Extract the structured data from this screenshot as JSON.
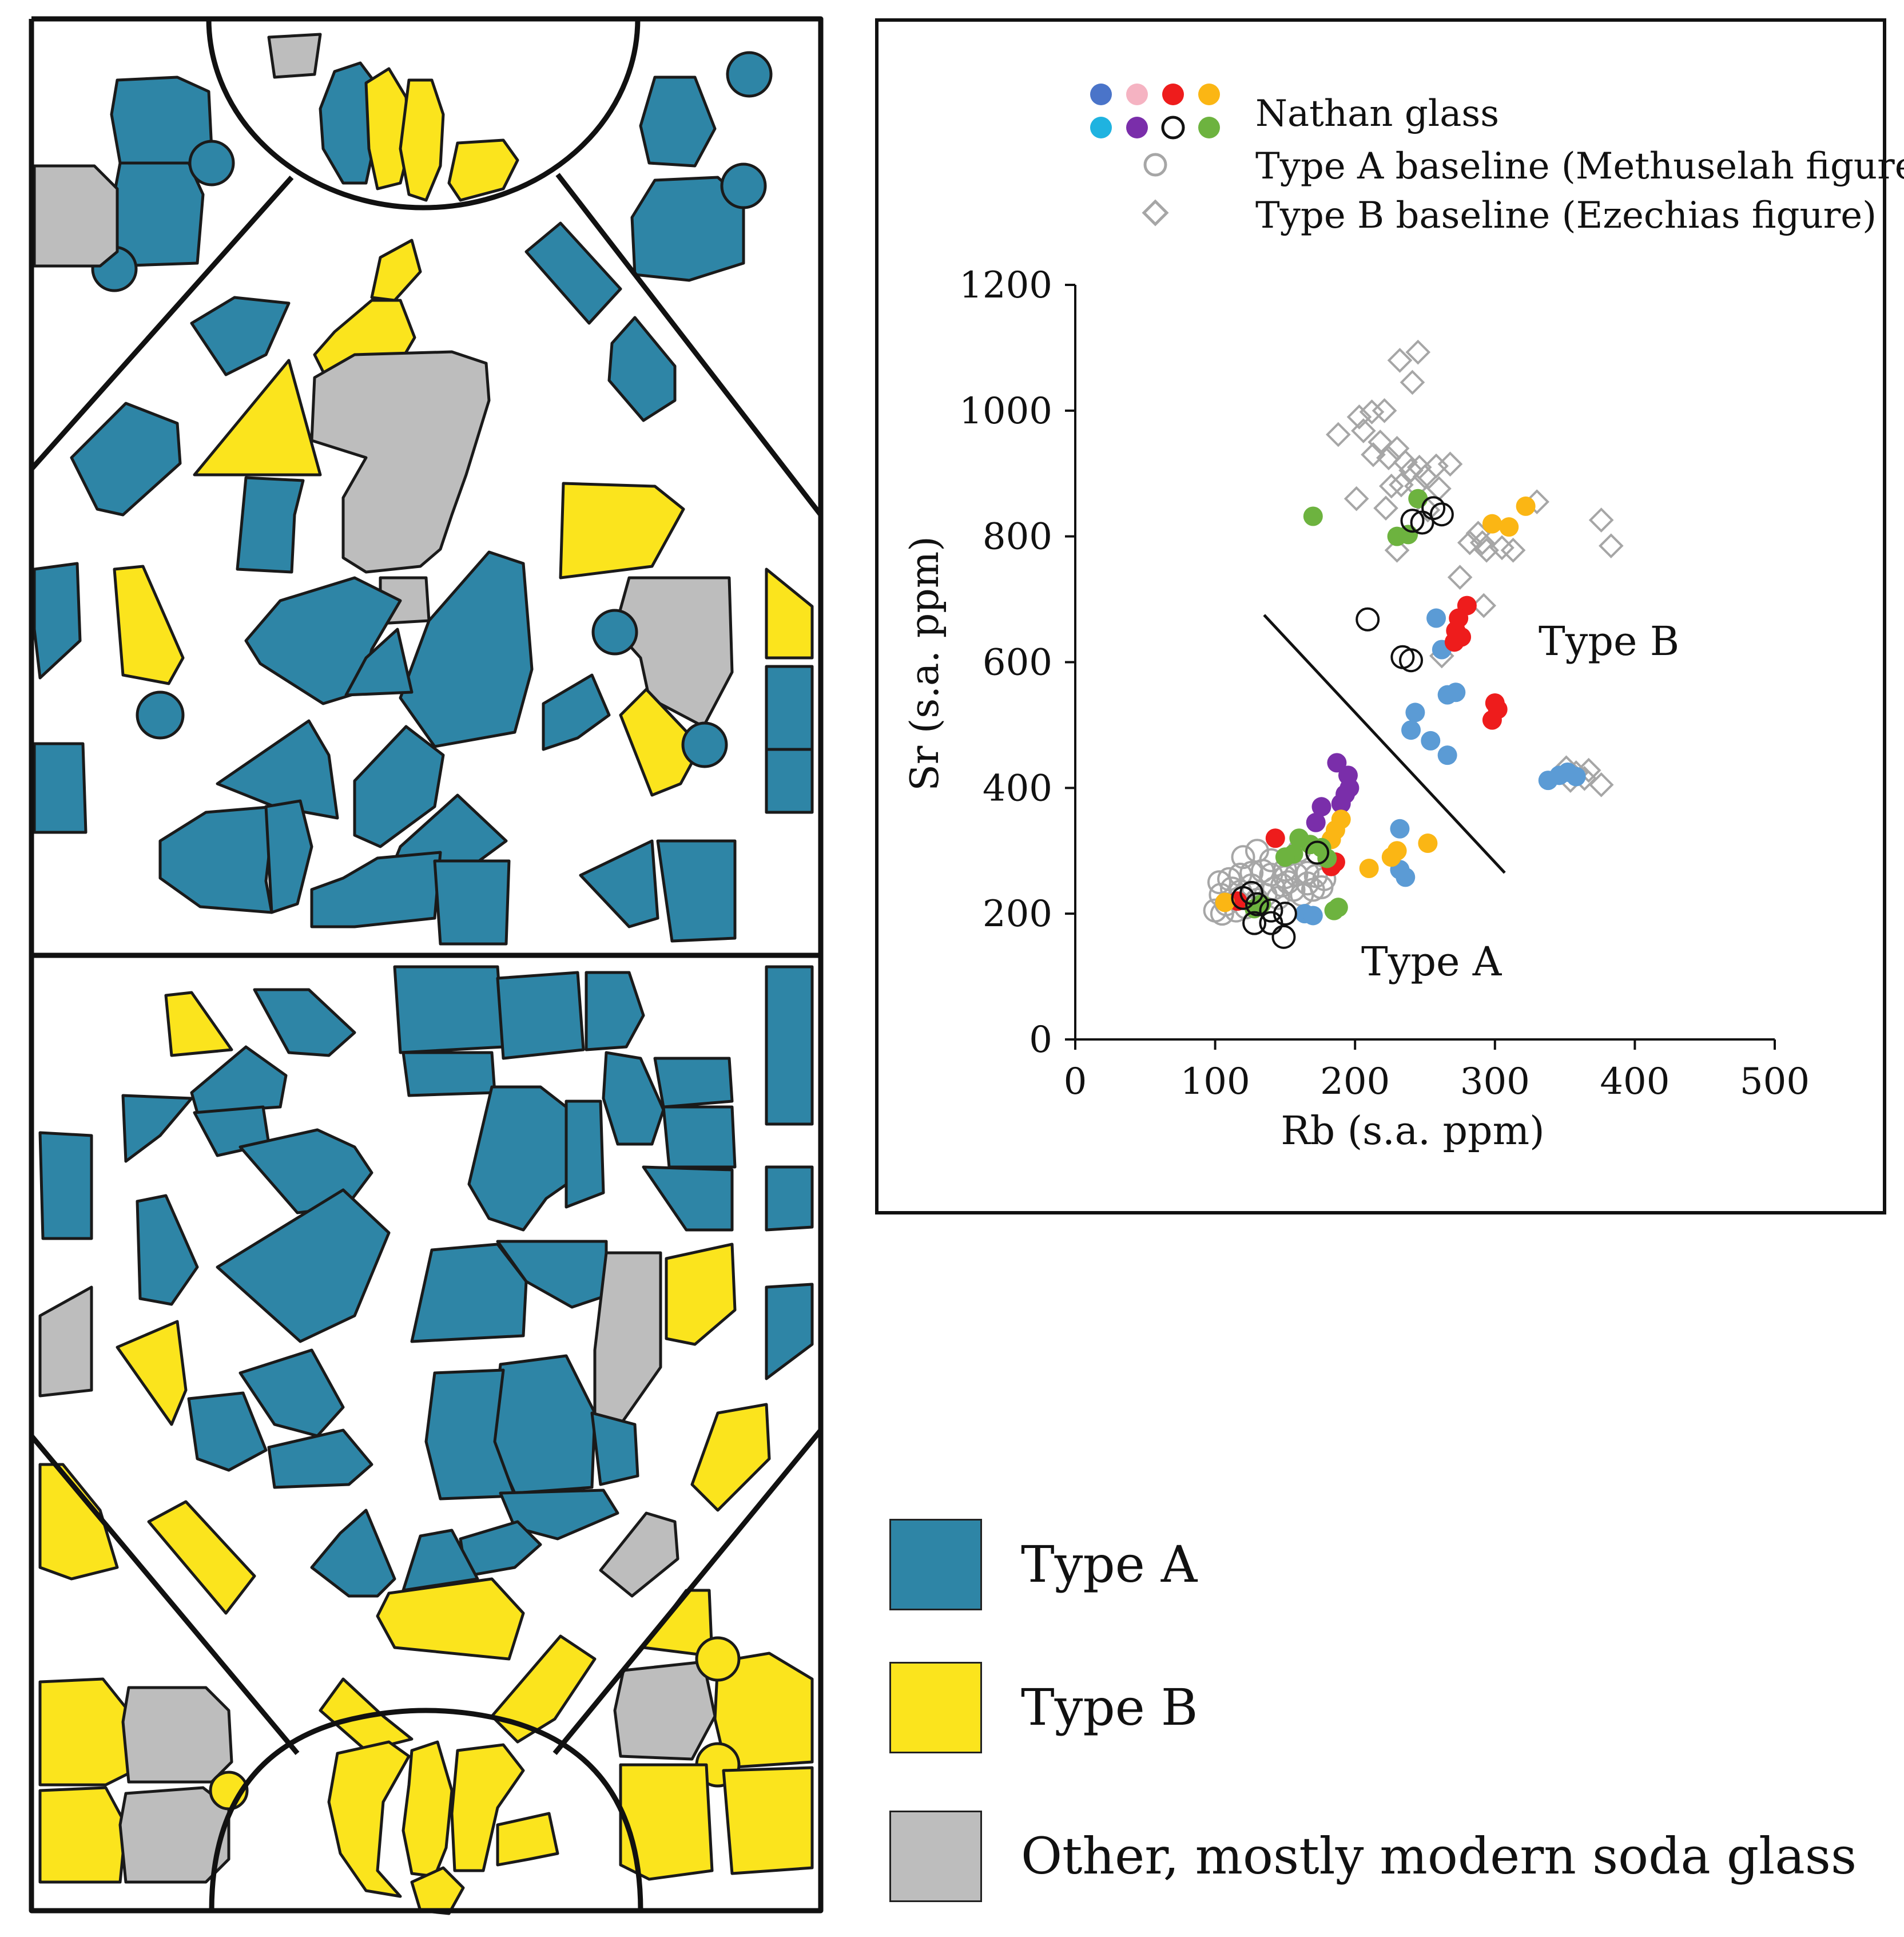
{
  "colors": {
    "type_a": "#2e85a6",
    "type_b": "#fbe41d",
    "other": "#bdbdbd",
    "outline": "#1a1a1a"
  },
  "legend": [
    {
      "label": "Type A",
      "color": "#2e85a6"
    },
    {
      "label": "Type B",
      "color": "#fbe41d"
    },
    {
      "label": "Other, mostly modern soda glass",
      "color": "#bdbdbd"
    }
  ],
  "chart_data": {
    "type": "scatter",
    "xlabel": "Rb (s.a. ppm)",
    "ylabel": "Sr (s.a. ppm)",
    "xlim": [
      0,
      500
    ],
    "ylim": [
      0,
      1200
    ],
    "xticks": [
      "0",
      "100",
      "200",
      "300",
      "400",
      "500"
    ],
    "yticks": [
      "0",
      "200",
      "400",
      "600",
      "800",
      "1000",
      "1200"
    ],
    "annotations": [
      "Type B",
      "Type A"
    ],
    "divider_line": [
      [
        135,
        675
      ],
      [
        307,
        265
      ]
    ],
    "legend_text": {
      "nathan": "Nathan glass",
      "type_a_baseline": "Type A baseline (Methuselah figure)",
      "type_b_baseline": "Type B baseline (Ezechias figure)"
    },
    "legend_nathan_colors": [
      "#4a74c9",
      "#f5b3c2",
      "#ee1c1c",
      "#fbb614",
      "#1fb3e0",
      "#7a2eaa",
      "none",
      "#6db33f"
    ],
    "series": [
      {
        "name": "Nathan glass (light blue)",
        "color": "#5b9bd5",
        "marker": "filled-circle",
        "points": [
          [
            258,
            670
          ],
          [
            262,
            620
          ],
          [
            266,
            548
          ],
          [
            272,
            552
          ],
          [
            243,
            520
          ],
          [
            240,
            492
          ],
          [
            254,
            475
          ],
          [
            266,
            452
          ],
          [
            338,
            412
          ],
          [
            346,
            420
          ],
          [
            352,
            425
          ],
          [
            358,
            418
          ],
          [
            232,
            335
          ],
          [
            236,
            258
          ],
          [
            232,
            270
          ],
          [
            164,
            200
          ],
          [
            170,
            197
          ]
        ]
      },
      {
        "name": "Nathan glass (red)",
        "color": "#ee1c1c",
        "marker": "filled-circle",
        "points": [
          [
            280,
            690
          ],
          [
            274,
            670
          ],
          [
            272,
            650
          ],
          [
            276,
            640
          ],
          [
            271,
            632
          ],
          [
            300,
            535
          ],
          [
            302,
            525
          ],
          [
            298,
            508
          ],
          [
            143,
            320
          ],
          [
            186,
            282
          ],
          [
            183,
            275
          ],
          [
            116,
            220
          ]
        ]
      },
      {
        "name": "Nathan glass (purple)",
        "color": "#7a2eaa",
        "marker": "filled-circle",
        "points": [
          [
            187,
            440
          ],
          [
            195,
            420
          ],
          [
            196,
            400
          ],
          [
            193,
            390
          ],
          [
            190,
            375
          ],
          [
            176,
            370
          ],
          [
            172,
            345
          ]
        ]
      },
      {
        "name": "Nathan glass (orange)",
        "color": "#fbb614",
        "marker": "filled-circle",
        "points": [
          [
            322,
            848
          ],
          [
            298,
            820
          ],
          [
            310,
            815
          ],
          [
            190,
            350
          ],
          [
            186,
            333
          ],
          [
            183,
            318
          ],
          [
            252,
            312
          ],
          [
            230,
            300
          ],
          [
            226,
            290
          ],
          [
            210,
            272
          ],
          [
            107,
            218
          ]
        ]
      },
      {
        "name": "Nathan glass (green)",
        "color": "#6db33f",
        "marker": "filled-circle",
        "points": [
          [
            170,
            832
          ],
          [
            245,
            860
          ],
          [
            230,
            800
          ],
          [
            238,
            803
          ],
          [
            160,
            320
          ],
          [
            168,
            310
          ],
          [
            176,
            305
          ],
          [
            156,
            295
          ],
          [
            150,
            290
          ],
          [
            180,
            288
          ],
          [
            188,
            210
          ],
          [
            185,
            205
          ],
          [
            133,
            215
          ],
          [
            128,
            208
          ]
        ]
      },
      {
        "name": "Nathan glass (open black)",
        "color": "#111111",
        "marker": "open-circle",
        "points": [
          [
            241,
            825
          ],
          [
            248,
            822
          ],
          [
            256,
            845
          ],
          [
            262,
            835
          ],
          [
            209,
            668
          ],
          [
            234,
            608
          ],
          [
            240,
            603
          ],
          [
            173,
            297
          ],
          [
            126,
            233
          ],
          [
            120,
            225
          ],
          [
            130,
            215
          ],
          [
            140,
            205
          ],
          [
            150,
            200
          ],
          [
            128,
            185
          ],
          [
            140,
            185
          ],
          [
            149,
            163
          ]
        ]
      },
      {
        "name": "Type A baseline (Methuselah figure)",
        "color": "#a6a6a6",
        "marker": "open-circle",
        "points": [
          [
            103,
            250
          ],
          [
            110,
            255
          ],
          [
            118,
            262
          ],
          [
            126,
            265
          ],
          [
            134,
            268
          ],
          [
            140,
            262
          ],
          [
            150,
            258
          ],
          [
            158,
            262
          ],
          [
            166,
            265
          ],
          [
            172,
            260
          ],
          [
            178,
            255
          ],
          [
            120,
            290
          ],
          [
            130,
            300
          ],
          [
            140,
            285
          ],
          [
            160,
            300
          ],
          [
            150,
            270
          ],
          [
            108,
            215
          ],
          [
            115,
            205
          ],
          [
            122,
            210
          ],
          [
            130,
            222
          ],
          [
            136,
            230
          ],
          [
            142,
            240
          ],
          [
            148,
            245
          ],
          [
            156,
            238
          ],
          [
            162,
            230
          ],
          [
            170,
            238
          ],
          [
            112,
            240
          ],
          [
            104,
            230
          ],
          [
            100,
            205
          ],
          [
            105,
            200
          ],
          [
            118,
            235
          ],
          [
            126,
            245
          ],
          [
            145,
            225
          ],
          [
            152,
            250
          ],
          [
            166,
            248
          ],
          [
            176,
            242
          ]
        ]
      },
      {
        "name": "Type B baseline (Ezechias figure)",
        "color": "#a6a6a6",
        "marker": "open-diamond",
        "points": [
          [
            232,
            1080
          ],
          [
            245,
            1093
          ],
          [
            241,
            1045
          ],
          [
            188,
            962
          ],
          [
            203,
            990
          ],
          [
            212,
            998
          ],
          [
            221,
            1000
          ],
          [
            206,
            968
          ],
          [
            218,
            950
          ],
          [
            230,
            940
          ],
          [
            213,
            930
          ],
          [
            224,
            925
          ],
          [
            236,
            918
          ],
          [
            246,
            910
          ],
          [
            258,
            912
          ],
          [
            268,
            915
          ],
          [
            240,
            905
          ],
          [
            250,
            895
          ],
          [
            233,
            882
          ],
          [
            244,
            880
          ],
          [
            260,
            876
          ],
          [
            226,
            880
          ],
          [
            201,
            860
          ],
          [
            222,
            845
          ],
          [
            252,
            842
          ],
          [
            330,
            855
          ],
          [
            376,
            826
          ],
          [
            383,
            785
          ],
          [
            288,
            805
          ],
          [
            291,
            790
          ],
          [
            294,
            778
          ],
          [
            305,
            782
          ],
          [
            313,
            778
          ],
          [
            282,
            790
          ],
          [
            275,
            735
          ],
          [
            292,
            690
          ],
          [
            262,
            610
          ],
          [
            351,
            432
          ],
          [
            358,
            424
          ],
          [
            367,
            428
          ],
          [
            364,
            415
          ],
          [
            354,
            412
          ],
          [
            376,
            405
          ],
          [
            230,
            778
          ]
        ]
      }
    ]
  }
}
